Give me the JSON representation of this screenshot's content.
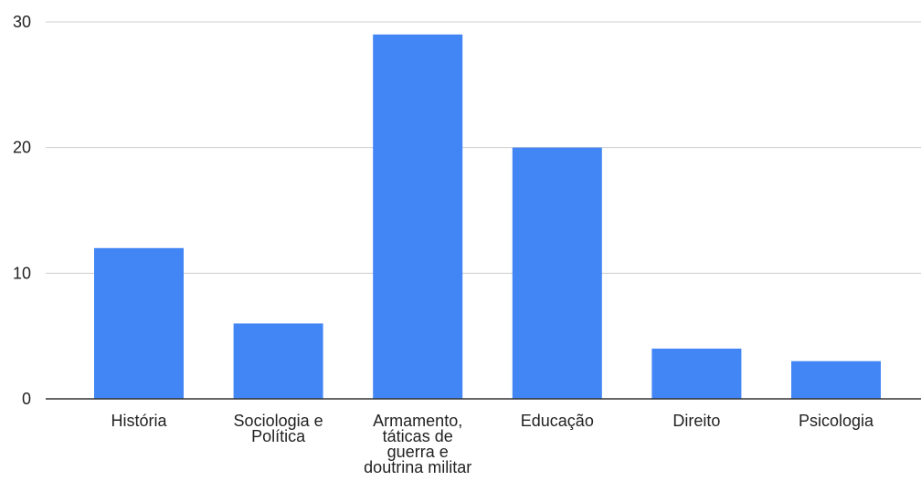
{
  "chart_data": {
    "type": "bar",
    "title": "",
    "xlabel": "",
    "ylabel": "",
    "categories": [
      [
        "História"
      ],
      [
        "Sociologia e",
        "Política"
      ],
      [
        "Armamento,",
        "táticas de",
        "guerra e",
        "doutrina militar"
      ],
      [
        "Educação"
      ],
      [
        "Direito"
      ],
      [
        "Psicologia"
      ]
    ],
    "values": [
      12,
      6,
      29,
      20,
      4,
      3
    ],
    "ylim": [
      0,
      30
    ],
    "yticks": [
      0,
      10,
      20,
      30
    ],
    "grid": true,
    "legend": "none",
    "bar_color": "#4285f4",
    "grid_color": "#cccccc",
    "axis_color": "#333333"
  }
}
